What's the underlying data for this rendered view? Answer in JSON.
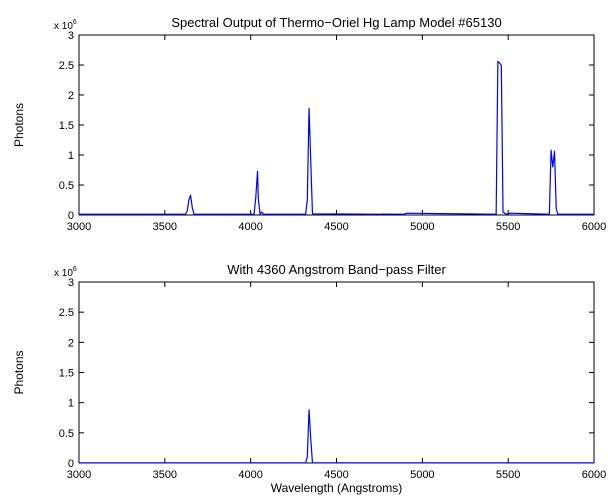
{
  "chart_data": [
    {
      "type": "line",
      "title": "Spectral Output of Thermo−Oriel Hg Lamp Model #65130",
      "xlabel": "",
      "ylabel": "Photons",
      "y_exponent": {
        "base": "x 10",
        "power": "6"
      },
      "xlim": [
        3000,
        6000
      ],
      "ylim": [
        0,
        3000000
      ],
      "xticks": [
        3000,
        3500,
        4000,
        4500,
        5000,
        5500,
        6000
      ],
      "xtick_labels": [
        "3000",
        "3500",
        "4000",
        "4500",
        "5000",
        "5500",
        "6000"
      ],
      "yticks": [
        0,
        500000,
        1000000,
        1500000,
        2000000,
        2500000,
        3000000
      ],
      "ytick_labels": [
        "0",
        "0.5",
        "1",
        "1.5",
        "2",
        "2.5",
        "3"
      ],
      "grid": false,
      "series": [
        {
          "color": "#0000ff",
          "x": [
            3000,
            3620,
            3630,
            3640,
            3650,
            3660,
            3670,
            4020,
            4030,
            4040,
            4045,
            4055,
            4065,
            4075,
            4320,
            4330,
            4340,
            4350,
            4360,
            4890,
            4910,
            5430,
            5440,
            5460,
            5470,
            5490,
            5510,
            5740,
            5750,
            5760,
            5770,
            5780,
            5790,
            6000
          ],
          "y": [
            12000,
            12000,
            60000,
            250000,
            330000,
            120000,
            12000,
            12000,
            300000,
            730000,
            250000,
            12000,
            50000,
            12000,
            12000,
            250000,
            1780000,
            900000,
            20000,
            12000,
            30000,
            12000,
            2560000,
            2500000,
            50000,
            12000,
            30000,
            12000,
            1080000,
            800000,
            1060000,
            100000,
            12000,
            12000
          ]
        }
      ]
    },
    {
      "type": "line",
      "title": "With 4360 Angstrom Band−pass Filter",
      "xlabel": "Wavelength (Angstroms)",
      "ylabel": "Photons",
      "y_exponent": {
        "base": "x 10",
        "power": "6"
      },
      "xlim": [
        3000,
        6000
      ],
      "ylim": [
        0,
        3000000
      ],
      "xticks": [
        3000,
        3500,
        4000,
        4500,
        5000,
        5500,
        6000
      ],
      "xtick_labels": [
        "3000",
        "3500",
        "4000",
        "4500",
        "5000",
        "5500",
        "6000"
      ],
      "yticks": [
        0,
        500000,
        1000000,
        1500000,
        2000000,
        2500000,
        3000000
      ],
      "ytick_labels": [
        "0",
        "0.5",
        "1",
        "1.5",
        "2",
        "2.5",
        "3"
      ],
      "grid": false,
      "series": [
        {
          "color": "#0000ff",
          "x": [
            3000,
            4320,
            4330,
            4340,
            4350,
            4360,
            6000
          ],
          "y": [
            2000,
            2000,
            100000,
            880000,
            400000,
            2000,
            2000
          ]
        }
      ]
    }
  ]
}
